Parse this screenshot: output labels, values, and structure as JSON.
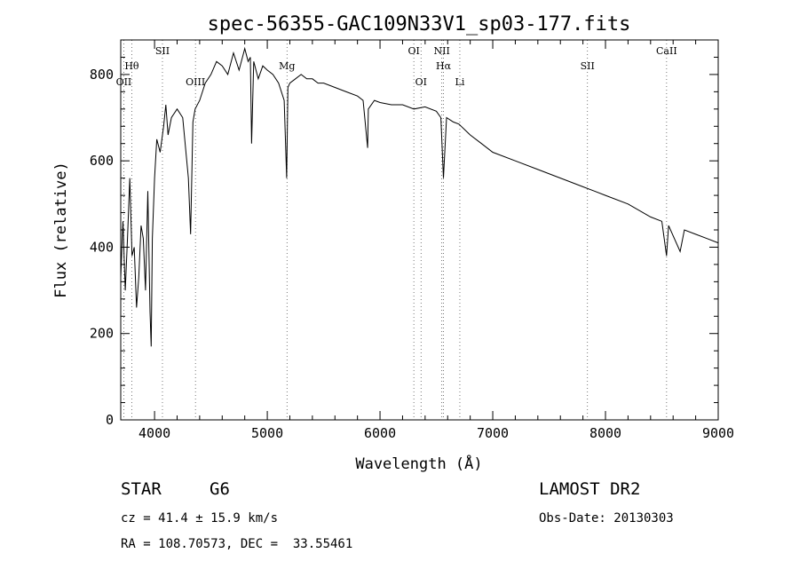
{
  "chart_data": {
    "type": "line",
    "title": "spec-56355-GAC109N33V1_sp03-177.fits",
    "xlabel": "Wavelength (Å)",
    "ylabel": "Flux (relative)",
    "xlim": [
      3700,
      9000
    ],
    "ylim": [
      0,
      880
    ],
    "xticks": [
      4000,
      5000,
      6000,
      7000,
      8000,
      9000
    ],
    "yticks": [
      0,
      200,
      400,
      600,
      800
    ],
    "grid": false,
    "series": [
      {
        "name": "spectrum",
        "x": [
          3700,
          3720,
          3740,
          3760,
          3780,
          3800,
          3820,
          3840,
          3860,
          3880,
          3900,
          3920,
          3940,
          3960,
          3970,
          3980,
          4000,
          4020,
          4050,
          4080,
          4100,
          4120,
          4150,
          4200,
          4250,
          4300,
          4320,
          4340,
          4360,
          4400,
          4450,
          4500,
          4550,
          4600,
          4650,
          4700,
          4750,
          4800,
          4830,
          4850,
          4861,
          4880,
          4920,
          4960,
          5000,
          5050,
          5100,
          5150,
          5172,
          5183,
          5200,
          5250,
          5300,
          5350,
          5400,
          5450,
          5500,
          5600,
          5700,
          5800,
          5850,
          5890,
          5896,
          5950,
          6000,
          6100,
          6200,
          6300,
          6400,
          6500,
          6540,
          6563,
          6590,
          6650,
          6700,
          6800,
          6900,
          7000,
          7200,
          7400,
          7600,
          7800,
          7900,
          8000,
          8200,
          8400,
          8500,
          8542,
          8560,
          8662,
          8700,
          8800,
          8900,
          9000
        ],
        "y": [
          330,
          460,
          300,
          420,
          560,
          380,
          400,
          260,
          330,
          450,
          420,
          300,
          530,
          250,
          170,
          420,
          560,
          650,
          620,
          680,
          730,
          660,
          700,
          720,
          700,
          560,
          430,
          690,
          720,
          740,
          780,
          800,
          830,
          820,
          800,
          850,
          810,
          860,
          830,
          840,
          640,
          830,
          790,
          820,
          810,
          800,
          780,
          740,
          560,
          770,
          780,
          790,
          800,
          790,
          790,
          780,
          780,
          770,
          760,
          750,
          740,
          630,
          720,
          740,
          735,
          730,
          730,
          720,
          725,
          715,
          700,
          560,
          700,
          690,
          685,
          660,
          640,
          620,
          600,
          580,
          560,
          540,
          530,
          520,
          500,
          470,
          460,
          380,
          450,
          390,
          440,
          430,
          420,
          410
        ]
      }
    ],
    "spectral_lines": [
      {
        "label": "Hθ",
        "wavelength": 3798,
        "row": 1
      },
      {
        "label": "OII",
        "wavelength": 3727,
        "row": 2
      },
      {
        "label": "SII",
        "wavelength": 4070,
        "row": 0
      },
      {
        "label": "OIII",
        "wavelength": 4363,
        "row": 2
      },
      {
        "label": "Mg",
        "wavelength": 5175,
        "row": 1
      },
      {
        "label": "OI",
        "wavelength": 6300,
        "row": 0
      },
      {
        "label": "OI",
        "wavelength": 6364,
        "row": 2
      },
      {
        "label": "NII",
        "wavelength": 6548,
        "row": 0
      },
      {
        "label": "Hα",
        "wavelength": 6563,
        "row": 1
      },
      {
        "label": "Li",
        "wavelength": 6708,
        "row": 2
      },
      {
        "label": "SII",
        "wavelength": 7840,
        "row": 1
      },
      {
        "label": "CaII",
        "wavelength": 8542,
        "row": 0
      }
    ]
  },
  "info": {
    "object_class": "STAR",
    "subclass": "G6",
    "survey": "LAMOST DR2",
    "redshift": "cz = 41.4 ± 15.9 km/s",
    "obs_date": "Obs-Date: 20130303",
    "coords": "RA = 108.70573, DEC =  33.55461"
  }
}
